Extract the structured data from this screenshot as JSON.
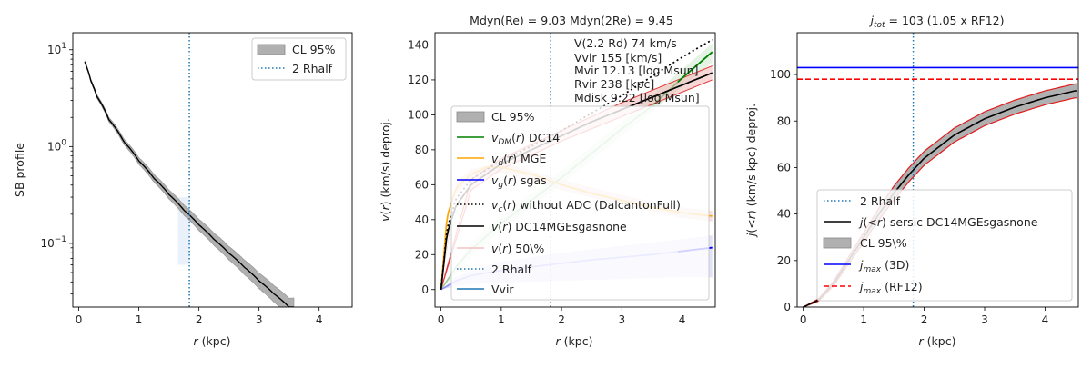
{
  "chart_data": [
    {
      "type": "line",
      "title": "",
      "xlabel": "r (kpc)",
      "ylabel": "SB profile",
      "yscale": "log",
      "xlim": [
        -0.1,
        4.55
      ],
      "ylim": [
        0.022,
        15
      ],
      "xticks": [
        "0",
        "1",
        "2",
        "3",
        "4"
      ],
      "yticks": [
        "10^-1",
        "10^0",
        "10^1"
      ],
      "legend_position": "top-right",
      "legend": [
        {
          "label": "CL 95%",
          "style": "patch",
          "color": "#b0b0b0"
        },
        {
          "label": "2 Rhalf",
          "style": "dotted",
          "color": "#1f77b4"
        }
      ],
      "rhalf2_x": 1.84,
      "series": [
        {
          "kind": "profile",
          "color": "#000000",
          "x": [
            0.1,
            0.2,
            0.3,
            0.5,
            0.75,
            1.0,
            1.25,
            1.5,
            1.75,
            2.0,
            2.25,
            2.5,
            2.75,
            3.0,
            3.25,
            3.5
          ],
          "values": [
            7.5,
            4.8,
            3.3,
            1.9,
            1.12,
            0.71,
            0.47,
            0.32,
            0.22,
            0.155,
            0.11,
            0.079,
            0.057,
            0.041,
            0.03,
            0.022
          ],
          "band": 0.06
        }
      ]
    },
    {
      "type": "line",
      "title": "Mdyn(Re) = 9.03  Mdyn(2Re) = 9.45",
      "xlabel": "r (kpc)",
      "ylabel": "v(r) (km/s) deproj.",
      "xlim": [
        -0.1,
        4.55
      ],
      "ylim": [
        -10,
        147
      ],
      "xticks": [
        0,
        1,
        2,
        3,
        4
      ],
      "yticks": [
        0,
        20,
        40,
        60,
        80,
        100,
        120,
        140
      ],
      "legend_position": "lower-left",
      "rhalf2_x": 1.82,
      "annotations": [
        "V(2.2 Rd) 74 km/s",
        "Vvir 155 [km/s]",
        "Mvir 12.13 [log Msun]",
        "Rvir 238 [kpc]",
        "Mdisk 9.22 [log Msun]"
      ],
      "legend": [
        {
          "label": "CL 95%",
          "style": "patch",
          "color": "#b0b0b0"
        },
        {
          "label": "$v_{DM}(r)$ DC14",
          "style": "solid",
          "color": "#008000"
        },
        {
          "label": "$v_{d}(r)$ MGE",
          "style": "solid",
          "color": "#ffa500"
        },
        {
          "label": "$v_{g}(r)$ sgas",
          "style": "solid",
          "color": "#0000ff"
        },
        {
          "label": "$v_{c}(r)$ without ADC (DalcantonFull)",
          "style": "dotted",
          "color": "#000000"
        },
        {
          "label": "$v(r)$ DC14MGEsgasnone",
          "style": "solid",
          "color": "#000000"
        },
        {
          "label": "$v(r)$ 50\\%",
          "style": "solid",
          "color": "#f4c2c2"
        },
        {
          "label": "2 Rhalf",
          "style": "dotted",
          "color": "#1f77b4"
        },
        {
          "label": "Vvir",
          "style": "solid",
          "color": "#1f77b4"
        }
      ],
      "series": [
        {
          "name": "$v_{DM}(r)$ DC14",
          "color": "#008000",
          "x": [
            0,
            0.25,
            0.5,
            1.0,
            1.5,
            2.0,
            2.5,
            3.0,
            3.5,
            4.0,
            4.5
          ],
          "values": [
            0,
            13,
            23,
            38,
            51,
            64,
            78,
            92,
            105,
            121,
            136
          ]
        },
        {
          "name": "$v_{d}(r)$ MGE",
          "color": "#ffa500",
          "x": [
            0,
            0.1,
            0.25,
            0.5,
            0.75,
            1.0,
            1.5,
            2.0,
            2.5,
            3.0,
            3.5,
            4.0,
            4.5
          ],
          "values": [
            0,
            42,
            58,
            66,
            70,
            70,
            66,
            60,
            55,
            51,
            47,
            44,
            42
          ]
        },
        {
          "name": "$v_{g}(r)$ sgas",
          "color": "#0000ff",
          "x": [
            0,
            0.25,
            0.5,
            1.0,
            1.5,
            2.0,
            2.5,
            3.0,
            3.5,
            4.0,
            4.5
          ],
          "values": [
            0,
            5,
            8,
            11,
            13,
            15,
            17,
            18.5,
            20,
            22,
            24
          ]
        },
        {
          "name": "$v_{c}(r)$ without ADC (DalcantonFull)",
          "color": "#000000",
          "dash": "2,3",
          "x": [
            0,
            0.1,
            0.25,
            0.5,
            1.0,
            1.5,
            2.0,
            2.5,
            3.0,
            3.5,
            4.0,
            4.5
          ],
          "values": [
            0,
            35,
            52,
            63,
            74,
            82,
            91,
            101,
            111,
            122,
            133,
            143
          ]
        },
        {
          "name": "$v(r)$ DC14MGEsgasnone",
          "color": "#000000",
          "x": [
            0,
            0.1,
            0.25,
            0.5,
            1.0,
            1.5,
            2.0,
            2.5,
            3.0,
            3.5,
            4.0,
            4.5
          ],
          "values": [
            0,
            32,
            48,
            60,
            72,
            80,
            88,
            96,
            103,
            110,
            117,
            124
          ]
        }
      ],
      "bands": [
        {
          "name": "vd CL",
          "color": "#f4c2c2",
          "x": [
            0,
            0.25,
            0.5,
            1.0,
            2.0,
            3.0,
            4.0,
            4.5
          ],
          "lo": [
            0,
            55,
            63,
            67,
            57,
            48,
            41,
            39
          ],
          "hi": [
            0,
            61,
            69,
            73,
            63,
            54,
            47,
            45
          ]
        },
        {
          "name": "vg CL",
          "color": "#c8c8f5",
          "x": [
            0,
            0.25,
            0.5,
            1.0,
            2.0,
            3.0,
            4.0,
            4.5
          ],
          "lo": [
            0,
            2,
            3,
            4,
            5,
            6,
            7,
            7
          ],
          "hi": [
            0,
            7,
            11,
            16,
            21,
            25,
            29,
            31
          ]
        },
        {
          "name": "vdm CL",
          "color": "#cfeacf",
          "x": [
            0,
            0.5,
            1.0,
            2.0,
            3.0,
            4.0,
            4.5
          ],
          "lo": [
            0,
            19,
            34,
            60,
            88,
            116,
            130
          ],
          "hi": [
            0,
            27,
            42,
            68,
            96,
            126,
            141
          ]
        },
        {
          "name": "v CL",
          "color": "#f3b6b6",
          "x": [
            0,
            0.5,
            1.0,
            2.0,
            3.0,
            4.0,
            4.5
          ],
          "lo": [
            0,
            57,
            69,
            85,
            99,
            113,
            120
          ],
          "hi": [
            0,
            63,
            75,
            91,
            107,
            121,
            128
          ]
        }
      ]
    },
    {
      "type": "line",
      "title": "$j_{tot} = 103$ (1.05 x RF12)",
      "xlabel": "r (kpc)",
      "ylabel": "j(<r) (km/s kpc) deproj.",
      "xlim": [
        -0.1,
        4.55
      ],
      "ylim": [
        0,
        118
      ],
      "xticks": [
        0,
        1,
        2,
        3,
        4
      ],
      "yticks": [
        0,
        20,
        40,
        60,
        80,
        100
      ],
      "legend_position": "lower-center",
      "rhalf2_x": 1.82,
      "jmax_3d": 103,
      "jmax_rf12": 98,
      "legend": [
        {
          "label": "2 Rhalf",
          "style": "dotted",
          "color": "#1f77b4"
        },
        {
          "label": "$j(<r)$ sersic DC14MGEsgasnone",
          "style": "solid",
          "color": "#000000"
        },
        {
          "label": "CL 95\\%",
          "style": "patch",
          "color": "#b0b0b0"
        },
        {
          "label": "$j_{max}$ (3D)",
          "style": "solid",
          "color": "#0000ff"
        },
        {
          "label": "$j_{max}$ (RF12)",
          "style": "dashed",
          "color": "#ff0000"
        }
      ],
      "series": [
        {
          "name": "$j(<r)$ sersic DC14MGEsgasnone",
          "color": "#000000",
          "x": [
            0,
            0.25,
            0.5,
            0.75,
            1.0,
            1.25,
            1.5,
            1.75,
            2.0,
            2.5,
            3.0,
            3.5,
            4.0,
            4.5
          ],
          "values": [
            0,
            3,
            10,
            20,
            30,
            40,
            49,
            57,
            64,
            74,
            81,
            86,
            90,
            93
          ],
          "band_lo": [
            0,
            2.5,
            9,
            18.5,
            28,
            37.5,
            46,
            54,
            61,
            71,
            78,
            83,
            87,
            90
          ],
          "band_hi": [
            0,
            3.5,
            11,
            21.5,
            32,
            42.5,
            52,
            60,
            67,
            77,
            84,
            89,
            93,
            96
          ]
        }
      ]
    }
  ]
}
